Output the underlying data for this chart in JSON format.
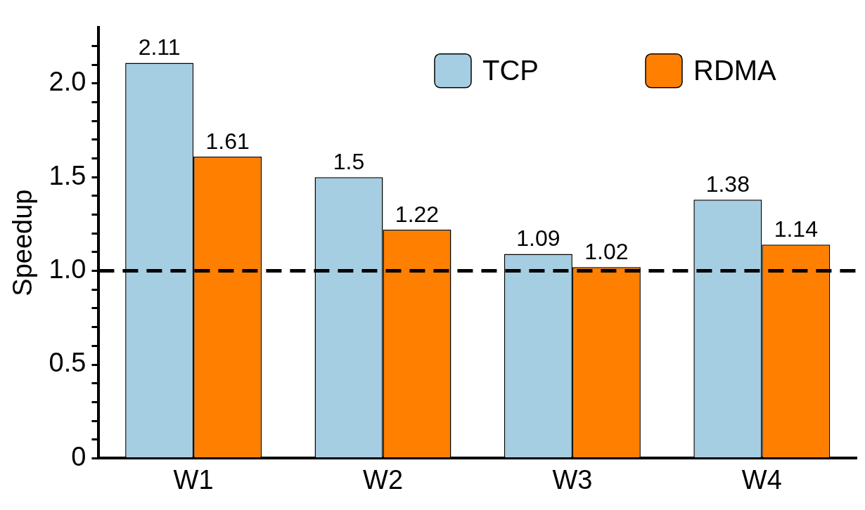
{
  "chart_data": {
    "type": "bar",
    "ylabel": "Speedup",
    "categories": [
      "W1",
      "W2",
      "W3",
      "W4"
    ],
    "series": [
      {
        "name": "TCP",
        "color": "#a6cee3",
        "values": [
          2.11,
          1.5,
          1.09,
          1.38
        ]
      },
      {
        "name": "RDMA",
        "color": "#ff7f00",
        "values": [
          1.61,
          1.22,
          1.02,
          1.14
        ]
      }
    ],
    "ylim": [
      0,
      2.3
    ],
    "yticks": [
      0,
      {
        "value": 0.1,
        "label": null
      },
      {
        "value": 0.2,
        "label": null
      },
      {
        "value": 0.3,
        "label": null
      },
      {
        "value": 0.4,
        "label": null
      },
      {
        "value": 0.5,
        "label": "0.5"
      },
      {
        "value": 0.6,
        "label": null
      },
      {
        "value": 0.7,
        "label": null
      },
      {
        "value": 0.8,
        "label": null
      },
      {
        "value": 0.9,
        "label": null
      },
      {
        "value": 1.0,
        "label": "1.0"
      },
      {
        "value": 1.1,
        "label": null
      },
      {
        "value": 1.2,
        "label": null
      },
      {
        "value": 1.3,
        "label": null
      },
      {
        "value": 1.4,
        "label": null
      },
      {
        "value": 1.5,
        "label": "1.5"
      },
      {
        "value": 1.6,
        "label": null
      },
      {
        "value": 1.7,
        "label": null
      },
      {
        "value": 1.8,
        "label": null
      },
      {
        "value": 1.9,
        "label": null
      },
      {
        "value": 2.0,
        "label": "2.0"
      },
      {
        "value": 2.1,
        "label": null
      },
      {
        "value": 2.2,
        "label": null
      }
    ],
    "ref_lines": [
      {
        "axis": "y",
        "value": 1.0,
        "color": "#000000",
        "line_style": "dashed"
      }
    ],
    "data_labels": true,
    "legend": "top right",
    "grid": false
  }
}
